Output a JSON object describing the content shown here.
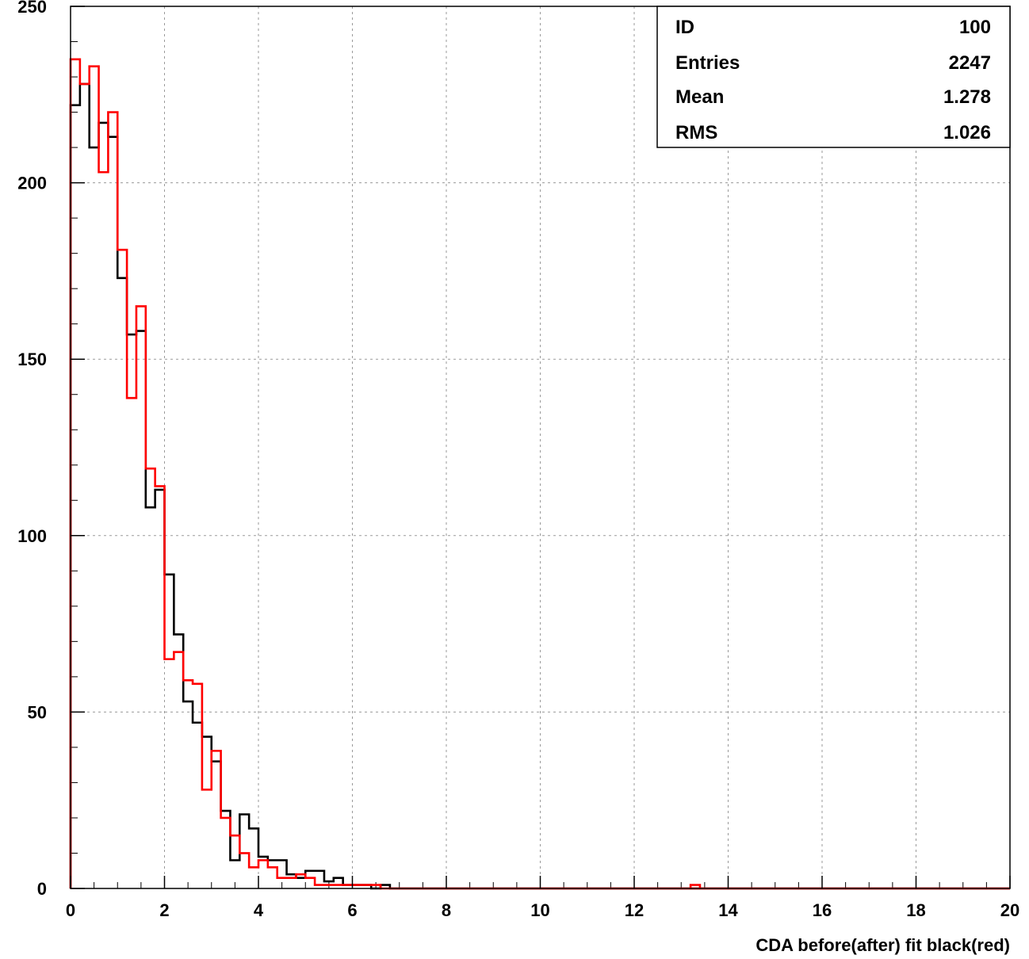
{
  "chart_data": {
    "type": "histogram",
    "title": "",
    "xlabel": "CDA before(after) fit black(red)",
    "ylabel": "",
    "xlim": [
      0,
      20
    ],
    "ylim": [
      0,
      250
    ],
    "bin_width": 0.2,
    "x_ticks": [
      "0",
      "2",
      "4",
      "6",
      "8",
      "10",
      "12",
      "14",
      "16",
      "18",
      "20"
    ],
    "y_ticks": [
      "0",
      "50",
      "100",
      "150",
      "200",
      "250"
    ],
    "grid": true,
    "series": [
      {
        "name": "before",
        "color": "#000000",
        "values": [
          222,
          228,
          210,
          217,
          213,
          173,
          157,
          158,
          108,
          113,
          89,
          72,
          53,
          47,
          43,
          36,
          22,
          8,
          21,
          17,
          9,
          8,
          8,
          4,
          3,
          5,
          5,
          2,
          3,
          1,
          1,
          1,
          0,
          1,
          0
        ]
      },
      {
        "name": "after",
        "color": "#ff0000",
        "values": [
          235,
          228,
          233,
          203,
          220,
          181,
          139,
          165,
          119,
          114,
          65,
          67,
          59,
          58,
          28,
          39,
          20,
          15,
          10,
          6,
          8,
          6,
          3,
          3,
          4,
          3,
          1,
          1,
          1,
          1,
          1,
          1,
          1,
          0
        ]
      }
    ],
    "after_extra_bins": [
      {
        "x": 13.2,
        "value": 1
      }
    ]
  },
  "stats": {
    "rows": [
      {
        "label": "ID",
        "value": "100"
      },
      {
        "label": "Entries",
        "value": "2247"
      },
      {
        "label": "Mean",
        "value": "1.278"
      },
      {
        "label": "RMS",
        "value": "1.026"
      }
    ]
  }
}
